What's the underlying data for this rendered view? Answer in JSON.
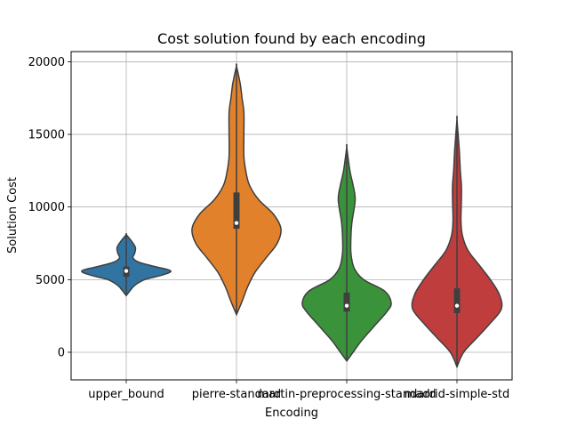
{
  "chart_data": {
    "type": "violin",
    "title": "Cost solution found by each encoding",
    "xlabel": "Encoding",
    "ylabel": "Solution Cost",
    "ylim": [
      -1900,
      20700
    ],
    "yticks": [
      0,
      5000,
      10000,
      15000,
      20000
    ],
    "grid": true,
    "categories": [
      "upper_bound",
      "pierre-standard",
      "martin-preprocessing-standard",
      "madrid-simple-std"
    ],
    "colors": [
      "#3274a1",
      "#e1812c",
      "#3a923a",
      "#c03d3e"
    ],
    "violins": [
      {
        "category": "upper_bound",
        "min": 3900,
        "max": 8100,
        "q1": 5200,
        "median": 5600,
        "q3": 5900,
        "profile": [
          [
            3900,
            0.0
          ],
          [
            4200,
            0.04
          ],
          [
            4600,
            0.1
          ],
          [
            5000,
            0.22
          ],
          [
            5300,
            0.42
          ],
          [
            5600,
            0.53
          ],
          [
            5900,
            0.34
          ],
          [
            6200,
            0.15
          ],
          [
            6500,
            0.08
          ],
          [
            6800,
            0.1
          ],
          [
            7200,
            0.11
          ],
          [
            7600,
            0.07
          ],
          [
            8100,
            0.0
          ]
        ]
      },
      {
        "category": "pierre-standard",
        "min": 2600,
        "max": 19700,
        "q1": 8500,
        "median": 8900,
        "q3": 11000,
        "profile": [
          [
            2600,
            0.0
          ],
          [
            3500,
            0.015
          ],
          [
            4500,
            0.03
          ],
          [
            5500,
            0.05
          ],
          [
            6500,
            0.08
          ],
          [
            7500,
            0.11
          ],
          [
            8500,
            0.12
          ],
          [
            9500,
            0.1
          ],
          [
            10500,
            0.06
          ],
          [
            11500,
            0.035
          ],
          [
            12500,
            0.025
          ],
          [
            13500,
            0.02
          ],
          [
            15000,
            0.02
          ],
          [
            16500,
            0.02
          ],
          [
            17500,
            0.015
          ],
          [
            18500,
            0.01
          ],
          [
            19700,
            0.0
          ]
        ]
      },
      {
        "category": "martin-preprocessing-standard",
        "min": -600,
        "max": 14100,
        "q1": 2800,
        "median": 3200,
        "q3": 4100,
        "profile": [
          [
            -600,
            0.0
          ],
          [
            0,
            0.03
          ],
          [
            800,
            0.07
          ],
          [
            1800,
            0.13
          ],
          [
            2800,
            0.19
          ],
          [
            3400,
            0.21
          ],
          [
            4200,
            0.18
          ],
          [
            5000,
            0.08
          ],
          [
            5800,
            0.035
          ],
          [
            6800,
            0.02
          ],
          [
            8000,
            0.02
          ],
          [
            9000,
            0.025
          ],
          [
            10500,
            0.04
          ],
          [
            11500,
            0.03
          ],
          [
            12500,
            0.015
          ],
          [
            14100,
            0.0
          ]
        ]
      },
      {
        "category": "madrid-simple-std",
        "min": -1000,
        "max": 16000,
        "q1": 2700,
        "median": 3200,
        "q3": 4400,
        "profile": [
          [
            -1000,
            0.0
          ],
          [
            0,
            0.03
          ],
          [
            1000,
            0.09
          ],
          [
            2000,
            0.15
          ],
          [
            3000,
            0.2
          ],
          [
            4000,
            0.19
          ],
          [
            5000,
            0.15
          ],
          [
            6000,
            0.1
          ],
          [
            7000,
            0.05
          ],
          [
            8000,
            0.025
          ],
          [
            9000,
            0.018
          ],
          [
            10500,
            0.02
          ],
          [
            11500,
            0.02
          ],
          [
            12500,
            0.015
          ],
          [
            14000,
            0.01
          ],
          [
            16000,
            0.0
          ]
        ]
      }
    ]
  }
}
